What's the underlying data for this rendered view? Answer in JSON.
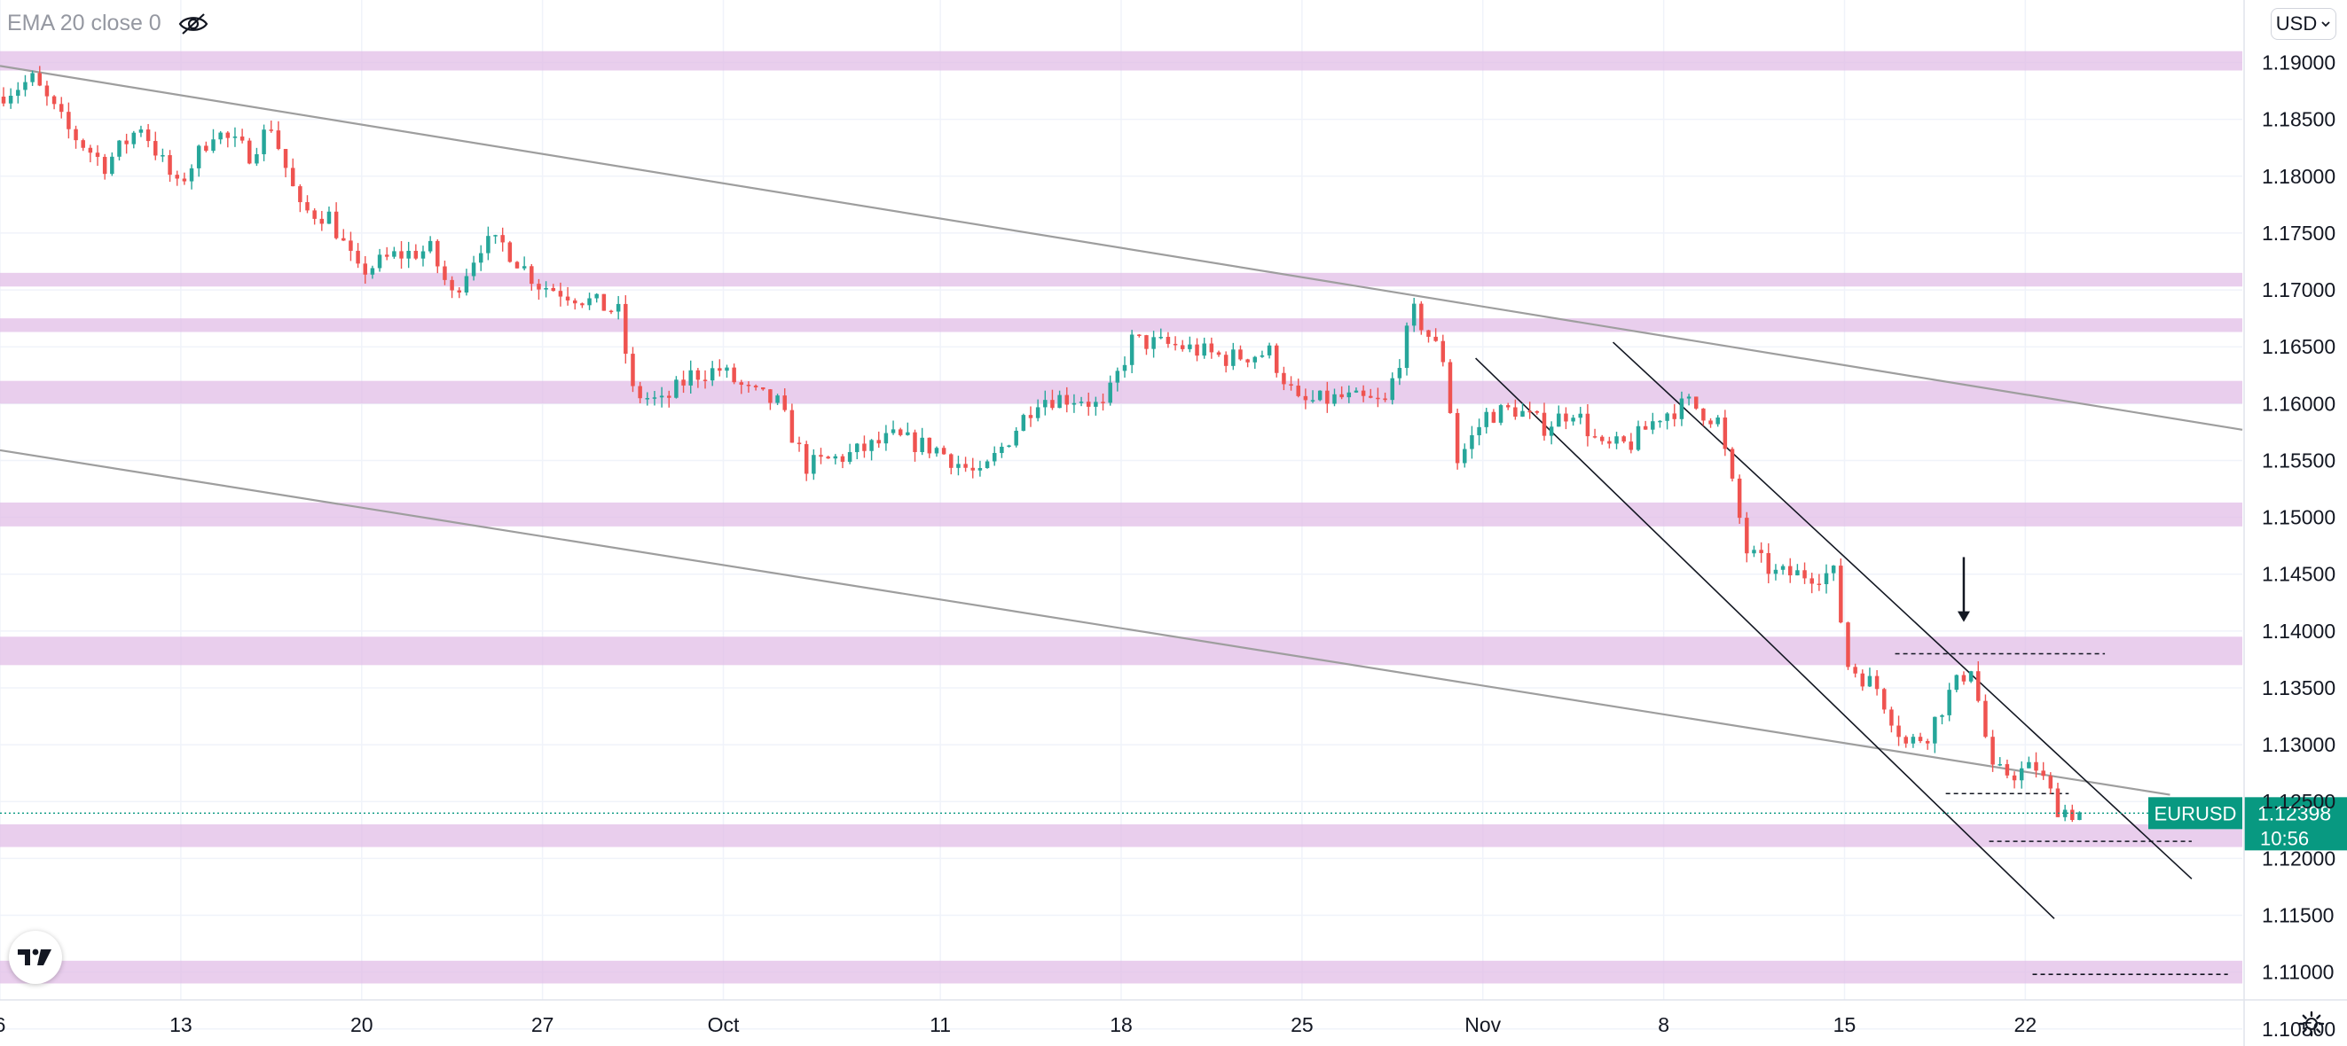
{
  "indicator": {
    "label": "EMA 20 close 0",
    "visibility_icon": "eye-crossed-icon"
  },
  "currency_button": {
    "label": "USD",
    "icon": "chevron-down-icon"
  },
  "logo": {
    "text": "TV"
  },
  "settings": {
    "icon": "gear-icon"
  },
  "colors": {
    "up": "#26a69a",
    "down": "#ef5350",
    "zone": "#e1bee7",
    "price_tag": "#089981",
    "trendline": "#9e9e9e",
    "channel": "#131722"
  },
  "chart_data": {
    "type": "candlestick",
    "symbol": "EURUSD",
    "last_price": "1.12398",
    "countdown": "10:56",
    "x_axis": {
      "ticks": [
        "6",
        "13",
        "20",
        "27",
        "Oct",
        "11",
        "18",
        "25",
        "Nov",
        "8",
        "15",
        "22"
      ],
      "tick_bars": [
        0,
        25,
        50,
        75,
        100,
        130,
        155,
        180,
        205,
        230,
        255,
        280
      ],
      "bar_count": 310
    },
    "y_axis": {
      "ticks": [
        "1.19000",
        "1.18500",
        "1.18000",
        "1.17500",
        "1.17000",
        "1.16500",
        "1.16000",
        "1.15500",
        "1.15000",
        "1.14500",
        "1.14000",
        "1.13500",
        "1.13000",
        "1.12500",
        "1.12000",
        "1.11500",
        "1.11000",
        "1.10500"
      ],
      "range": [
        1.1035,
        1.1955
      ]
    },
    "zones": [
      [
        1.1893,
        1.191
      ],
      [
        1.1703,
        1.1715
      ],
      [
        1.1663,
        1.1675
      ],
      [
        1.16,
        1.162
      ],
      [
        1.1492,
        1.1513
      ],
      [
        1.137,
        1.1395
      ],
      [
        1.121,
        1.123
      ],
      [
        1.109,
        1.111
      ]
    ],
    "anchors": [
      [
        0,
        1.187
      ],
      [
        5,
        1.1885
      ],
      [
        10,
        1.184
      ],
      [
        15,
        1.181
      ],
      [
        20,
        1.1845
      ],
      [
        25,
        1.179
      ],
      [
        30,
        1.184
      ],
      [
        35,
        1.182
      ],
      [
        38,
        1.1845
      ],
      [
        42,
        1.177
      ],
      [
        46,
        1.1765
      ],
      [
        50,
        1.1715
      ],
      [
        55,
        1.173
      ],
      [
        60,
        1.1735
      ],
      [
        63,
        1.1695
      ],
      [
        67,
        1.174
      ],
      [
        70,
        1.174
      ],
      [
        75,
        1.1705
      ],
      [
        80,
        1.1695
      ],
      [
        86,
        1.168
      ],
      [
        88,
        1.161
      ],
      [
        92,
        1.16
      ],
      [
        96,
        1.1625
      ],
      [
        100,
        1.163
      ],
      [
        104,
        1.161
      ],
      [
        108,
        1.16
      ],
      [
        112,
        1.1545
      ],
      [
        118,
        1.1555
      ],
      [
        124,
        1.157
      ],
      [
        130,
        1.156
      ],
      [
        136,
        1.1535
      ],
      [
        140,
        1.157
      ],
      [
        144,
        1.1605
      ],
      [
        150,
        1.1605
      ],
      [
        153,
        1.1595
      ],
      [
        157,
        1.1655
      ],
      [
        164,
        1.165
      ],
      [
        170,
        1.164
      ],
      [
        176,
        1.1645
      ],
      [
        180,
        1.16
      ],
      [
        186,
        1.1605
      ],
      [
        192,
        1.16
      ],
      [
        196,
        1.168
      ],
      [
        200,
        1.164
      ],
      [
        202,
        1.155
      ],
      [
        206,
        1.159
      ],
      [
        210,
        1.1595
      ],
      [
        214,
        1.158
      ],
      [
        218,
        1.1595
      ],
      [
        222,
        1.156
      ],
      [
        226,
        1.1565
      ],
      [
        230,
        1.159
      ],
      [
        234,
        1.16
      ],
      [
        238,
        1.1585
      ],
      [
        242,
        1.147
      ],
      [
        246,
        1.145
      ],
      [
        250,
        1.145
      ],
      [
        254,
        1.145
      ],
      [
        256,
        1.137
      ],
      [
        260,
        1.135
      ],
      [
        264,
        1.13
      ],
      [
        267,
        1.131
      ],
      [
        270,
        1.1345
      ],
      [
        273,
        1.137
      ],
      [
        276,
        1.1275
      ],
      [
        279,
        1.1275
      ],
      [
        282,
        1.128
      ],
      [
        285,
        1.1245
      ],
      [
        287,
        1.124
      ]
    ],
    "last_bar": 287,
    "trendlines": [
      {
        "name": "upper",
        "from": [
          0,
          1.1897
        ],
        "to": [
          310,
          1.1577
        ]
      },
      {
        "name": "lower",
        "from": [
          0,
          1.1559
        ],
        "to": [
          300,
          1.1256
        ]
      }
    ],
    "channel_lines": [
      {
        "name": "channel-lower",
        "from": [
          204,
          1.164
        ],
        "to": [
          284,
          1.1147
        ]
      },
      {
        "name": "channel-upper",
        "from": [
          223,
          1.1654
        ],
        "to": [
          303,
          1.1182
        ]
      }
    ],
    "dashed_levels": [
      {
        "price": 1.138,
        "from_bar": 262,
        "to_bar": 291
      },
      {
        "price": 1.1257,
        "from_bar": 269,
        "to_bar": 286
      },
      {
        "price": 1.1215,
        "from_bar": 275,
        "to_bar": 303
      },
      {
        "price": 1.1098,
        "from_bar": 281,
        "to_bar": 308
      }
    ],
    "arrow": {
      "bar": 271,
      "price_top": 1.1465,
      "price_tip": 1.1408
    },
    "last_price_line": 1.12398
  }
}
